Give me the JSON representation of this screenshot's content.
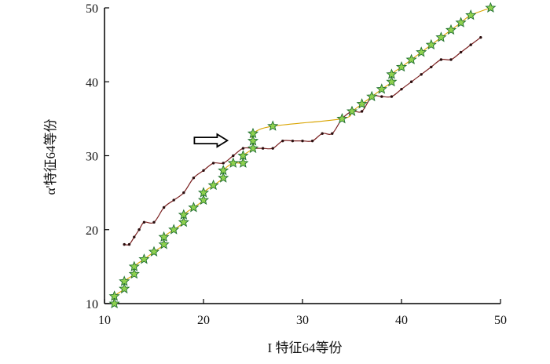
{
  "chart_data": {
    "type": "line",
    "xlabel": "I 特征64等份",
    "ylabel": "α'特征64等份",
    "xlim": [
      10,
      50
    ],
    "ylim": [
      10,
      50
    ],
    "xticks": [
      10,
      20,
      30,
      40,
      50
    ],
    "yticks": [
      10,
      20,
      30,
      40,
      50
    ],
    "grid": false,
    "legend": "none",
    "annotation": {
      "type": "hollow-arrow",
      "points_to": [
        24,
        31
      ]
    },
    "series": [
      {
        "color": "#7a1f1f",
        "marker": "dot",
        "points": [
          [
            12,
            18
          ],
          [
            12.5,
            18
          ],
          [
            13,
            19
          ],
          [
            13.5,
            20
          ],
          [
            14,
            21
          ],
          [
            15,
            21
          ],
          [
            16,
            23
          ],
          [
            17,
            24
          ],
          [
            18,
            25
          ],
          [
            19,
            27
          ],
          [
            20,
            28
          ],
          [
            21,
            29
          ],
          [
            22,
            29
          ],
          [
            23,
            30
          ],
          [
            24,
            31
          ],
          [
            25,
            31
          ],
          [
            26,
            31
          ],
          [
            27,
            31
          ],
          [
            28,
            32
          ],
          [
            29,
            32
          ],
          [
            30,
            32
          ],
          [
            31,
            32
          ],
          [
            32,
            33
          ],
          [
            33,
            33
          ],
          [
            34,
            35
          ],
          [
            35,
            36
          ],
          [
            36,
            36
          ],
          [
            37,
            38
          ],
          [
            38,
            38
          ],
          [
            39,
            38
          ],
          [
            40,
            39
          ],
          [
            41,
            40
          ],
          [
            42,
            41
          ],
          [
            43,
            42
          ],
          [
            44,
            43
          ],
          [
            45,
            43
          ],
          [
            46,
            44
          ],
          [
            47,
            45
          ],
          [
            48,
            46
          ]
        ]
      },
      {
        "color": "#d9a400",
        "marker": "star",
        "marker_fill": "#8fd14f",
        "marker_stroke": "#1f6f2f",
        "points": [
          [
            11,
            10
          ],
          [
            11,
            11
          ],
          [
            12,
            12
          ],
          [
            12,
            13
          ],
          [
            13,
            14
          ],
          [
            13,
            15
          ],
          [
            14,
            16
          ],
          [
            15,
            17
          ],
          [
            16,
            18
          ],
          [
            16,
            19
          ],
          [
            17,
            20
          ],
          [
            18,
            21
          ],
          [
            18,
            22
          ],
          [
            19,
            23
          ],
          [
            20,
            24
          ],
          [
            20,
            25
          ],
          [
            21,
            26
          ],
          [
            22,
            27
          ],
          [
            22,
            28
          ],
          [
            23,
            29
          ],
          [
            24,
            29
          ],
          [
            24,
            30
          ],
          [
            25,
            31
          ],
          [
            25,
            32
          ],
          [
            25,
            33
          ],
          [
            27,
            34
          ],
          [
            34,
            35
          ],
          [
            35,
            36
          ],
          [
            36,
            37
          ],
          [
            37,
            38
          ],
          [
            38,
            39
          ],
          [
            39,
            40
          ],
          [
            39,
            41
          ],
          [
            40,
            42
          ],
          [
            41,
            43
          ],
          [
            42,
            44
          ],
          [
            43,
            45
          ],
          [
            44,
            46
          ],
          [
            45,
            47
          ],
          [
            46,
            48
          ],
          [
            47,
            49
          ],
          [
            49,
            50
          ]
        ]
      }
    ]
  }
}
